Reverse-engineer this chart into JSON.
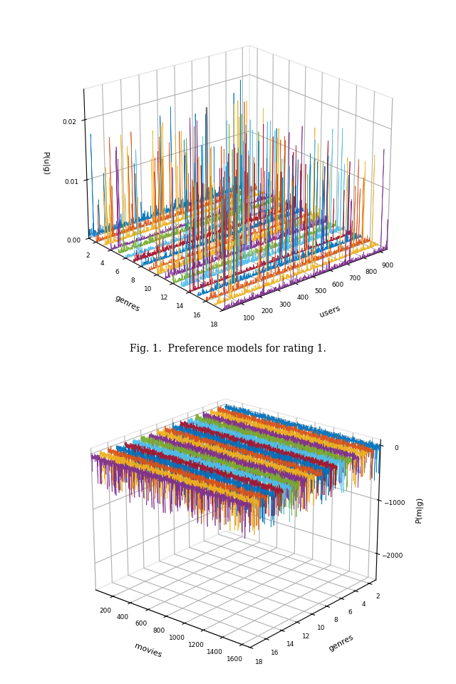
{
  "plot1": {
    "xlabel": "genres",
    "ylabel": "users",
    "zlabel": "P(u|g)",
    "users_ticks": [
      100,
      200,
      300,
      400,
      500,
      600,
      700,
      800,
      900
    ],
    "genres_ticks": [
      2,
      4,
      6,
      8,
      10,
      12,
      14,
      16,
      18
    ],
    "zticks": [
      0,
      0.01,
      0.02
    ],
    "caption": "Fig. 1.  Preference models for rating 1.",
    "n_genres": 18,
    "n_users": 943,
    "colors": [
      "#0072BD",
      "#D95319",
      "#EDB120",
      "#7E2F8E",
      "#77AC30",
      "#4DBEEE",
      "#A2142F",
      "#0072BD",
      "#D95319",
      "#EDB120",
      "#7E2F8E",
      "#77AC30",
      "#4DBEEE",
      "#A2142F",
      "#0072BD",
      "#D95319",
      "#EDB120",
      "#7E2F8E"
    ]
  },
  "plot2": {
    "xlabel": "genres",
    "ylabel": "movies",
    "zlabel": "P(m|g)",
    "movies_ticks": [
      200,
      400,
      600,
      800,
      1000,
      1200,
      1400,
      1600
    ],
    "genres_ticks": [
      2,
      4,
      6,
      8,
      10,
      12,
      14,
      16,
      18
    ],
    "zticks": [
      -2000,
      -1000,
      0
    ],
    "n_genres": 18,
    "n_movies": 1682,
    "colors": [
      "#0072BD",
      "#D95319",
      "#EDB120",
      "#7E2F8E",
      "#77AC30",
      "#4DBEEE",
      "#A2142F",
      "#0072BD",
      "#D95319",
      "#EDB120",
      "#7E2F8E",
      "#77AC30",
      "#4DBEEE",
      "#A2142F",
      "#0072BD",
      "#D95319",
      "#EDB120",
      "#7E2F8E"
    ]
  },
  "background_color": "#ffffff",
  "seed": 12345
}
